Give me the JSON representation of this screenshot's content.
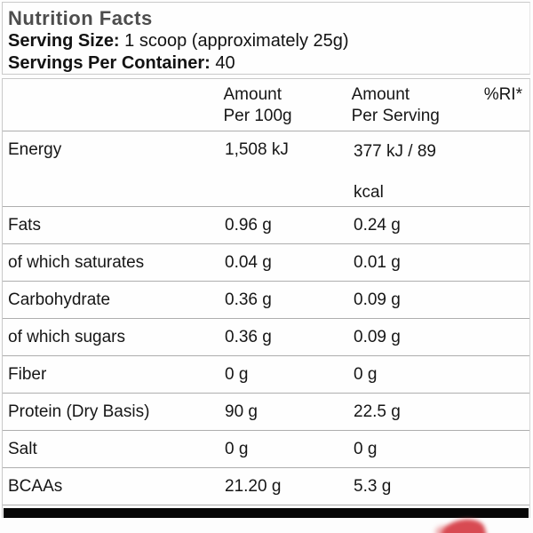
{
  "header": {
    "title": "Nutrition Facts",
    "serving_size_label": "Serving Size:",
    "serving_size_value": "1 scoop (approximately 25g)",
    "servings_per_container_label": "Servings Per Container:",
    "servings_per_container_value": "40"
  },
  "table": {
    "column_headers": {
      "amount_per_100g_line1": "Amount",
      "amount_per_100g_line2": "Per 100g",
      "amount_per_serving_line1": "Amount",
      "amount_per_serving_line2": "Per Serving",
      "ri": "%RI*"
    },
    "rows": [
      {
        "label": "Energy",
        "per_100g": "1,508 kJ",
        "per_serving": "377 kJ / 89 kcal",
        "ri": ""
      },
      {
        "label": "Fats",
        "per_100g": "0.96 g",
        "per_serving": "0.24 g",
        "ri": ""
      },
      {
        "label": "of which saturates",
        "per_100g": "0.04 g",
        "per_serving": "0.01 g",
        "ri": ""
      },
      {
        "label": "Carbohydrate",
        "per_100g": "0.36 g",
        "per_serving": "0.09 g",
        "ri": ""
      },
      {
        "label": "of which sugars",
        "per_100g": "0.36 g",
        "per_serving": "0.09 g",
        "ri": ""
      },
      {
        "label": "Fiber",
        "per_100g": "0 g",
        "per_serving": "0 g",
        "ri": ""
      },
      {
        "label": "Protein (Dry Basis)",
        "per_100g": "90 g",
        "per_serving": "22.5 g",
        "ri": ""
      },
      {
        "label": "Salt",
        "per_100g": "0 g",
        "per_serving": "0 g",
        "ri": ""
      },
      {
        "label": "BCAAs",
        "per_100g": "21.20 g",
        "per_serving": "5.3 g",
        "ri": ""
      }
    ]
  },
  "colors": {
    "title_gray": "#4d4d4d",
    "divider_gray": "#aeaeae",
    "bar_black": "#070707",
    "accent_red": "#d84a52"
  }
}
